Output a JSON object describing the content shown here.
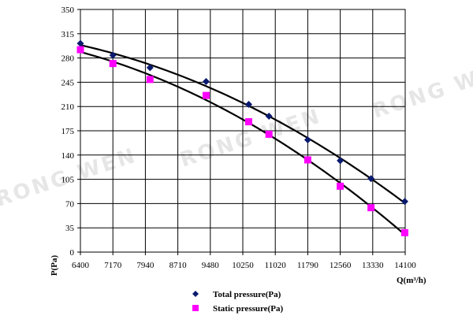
{
  "watermark": "RONG WEN",
  "chart_data": {
    "type": "scatter",
    "xlabel": "Q(m³/h)",
    "ylabel": "P(Pa)",
    "xlim": [
      6400,
      14100
    ],
    "ylim": [
      0,
      350
    ],
    "x_ticks": [
      "6400",
      "7170",
      "7940",
      "8710",
      "9480",
      "10250",
      "11020",
      "11790",
      "12560",
      "13330",
      "14100"
    ],
    "y_ticks": [
      "0",
      "35",
      "70",
      "105",
      "140",
      "175",
      "210",
      "245",
      "280",
      "315",
      "350"
    ],
    "grid": true,
    "legend_position": "bottom-left",
    "series": [
      {
        "name": "Total pressure(Pa)",
        "marker": "diamond",
        "color": "#0a1a6e",
        "trendline": true,
        "x": [
          6400,
          7170,
          8050,
          9380,
          10390,
          10870,
          11790,
          12560,
          13290,
          14090
        ],
        "y": [
          301,
          284,
          266,
          246,
          213,
          196,
          162,
          132,
          106,
          73
        ]
      },
      {
        "name": "Static pressure(Pa)",
        "marker": "square",
        "color": "#ff00ff",
        "trendline": true,
        "x": [
          6400,
          7170,
          8050,
          9380,
          10390,
          10870,
          11790,
          12560,
          13290,
          14090
        ],
        "y": [
          292,
          272,
          249,
          226,
          188,
          170,
          133,
          95,
          64,
          28
        ]
      }
    ]
  }
}
